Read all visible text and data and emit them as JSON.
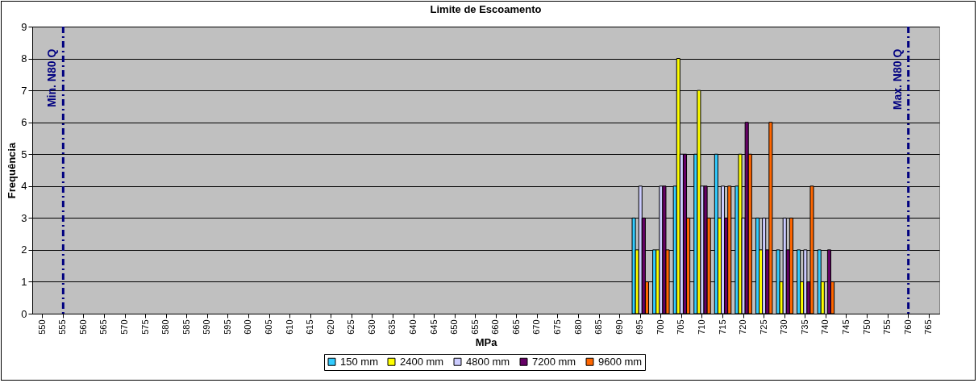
{
  "chart_data": {
    "type": "bar",
    "title": "Limite de Escoamento",
    "xlabel": "MPa",
    "ylabel": "Frequência",
    "categories": [
      "550",
      "555",
      "560",
      "565",
      "570",
      "575",
      "580",
      "585",
      "590",
      "595",
      "600",
      "605",
      "610",
      "615",
      "620",
      "625",
      "630",
      "635",
      "640",
      "645",
      "650",
      "655",
      "660",
      "665",
      "670",
      "675",
      "680",
      "685",
      "690",
      "695",
      "700",
      "705",
      "710",
      "715",
      "720",
      "725",
      "730",
      "735",
      "740",
      "745",
      "750",
      "755",
      "760",
      "765"
    ],
    "series": [
      {
        "name": "150 mm",
        "color": "#33ccff",
        "values": [
          null,
          null,
          null,
          null,
          null,
          null,
          null,
          null,
          null,
          null,
          null,
          null,
          null,
          null,
          null,
          null,
          null,
          null,
          null,
          null,
          null,
          null,
          null,
          null,
          null,
          null,
          null,
          null,
          null,
          3,
          2,
          4,
          5,
          5,
          4,
          3,
          2,
          2,
          2,
          null,
          null,
          null,
          null,
          null
        ]
      },
      {
        "name": "2400 mm",
        "color": "#ffff00",
        "values": [
          null,
          null,
          null,
          null,
          null,
          null,
          null,
          null,
          null,
          null,
          null,
          null,
          null,
          null,
          null,
          null,
          null,
          null,
          null,
          null,
          null,
          null,
          null,
          null,
          null,
          null,
          null,
          null,
          null,
          2,
          2,
          8,
          7,
          3,
          5,
          2,
          1,
          1,
          1,
          null,
          null,
          null,
          null,
          null
        ]
      },
      {
        "name": "4800 mm",
        "color": "#ccccff",
        "values": [
          null,
          null,
          null,
          null,
          null,
          null,
          null,
          null,
          null,
          null,
          null,
          null,
          null,
          null,
          null,
          null,
          null,
          null,
          null,
          null,
          null,
          null,
          null,
          null,
          null,
          null,
          null,
          null,
          null,
          4,
          4,
          5,
          4,
          4,
          3,
          3,
          3,
          2,
          null,
          null,
          null,
          null,
          null,
          null
        ]
      },
      {
        "name": "7200 mm",
        "color": "#660066",
        "values": [
          null,
          null,
          null,
          null,
          null,
          null,
          null,
          null,
          null,
          null,
          null,
          null,
          null,
          null,
          null,
          null,
          null,
          null,
          null,
          null,
          null,
          null,
          null,
          null,
          null,
          null,
          null,
          null,
          null,
          3,
          4,
          5,
          4,
          3,
          6,
          2,
          2,
          1,
          2,
          null,
          null,
          null,
          null,
          null
        ]
      },
      {
        "name": "9600 mm",
        "color": "#ff6600",
        "values": [
          null,
          null,
          null,
          null,
          null,
          null,
          null,
          null,
          null,
          null,
          null,
          null,
          null,
          null,
          null,
          null,
          null,
          null,
          null,
          null,
          null,
          null,
          null,
          null,
          null,
          null,
          null,
          null,
          null,
          1,
          2,
          3,
          3,
          4,
          5,
          6,
          3,
          4,
          1,
          null,
          null,
          null,
          null,
          null
        ]
      }
    ],
    "ylim": [
      0,
      9
    ],
    "yticks": [
      0,
      1,
      2,
      3,
      4,
      5,
      6,
      7,
      8,
      9
    ],
    "grid": "y",
    "legend": "bottom",
    "ref_lines": [
      {
        "axis": "x",
        "value": "555",
        "label": "Min. N80 Q",
        "color": "#000080",
        "line_style": "dashed"
      },
      {
        "axis": "x",
        "value": "760",
        "label": "Max. N80 Q",
        "color": "#000080",
        "line_style": "dashed"
      }
    ]
  }
}
